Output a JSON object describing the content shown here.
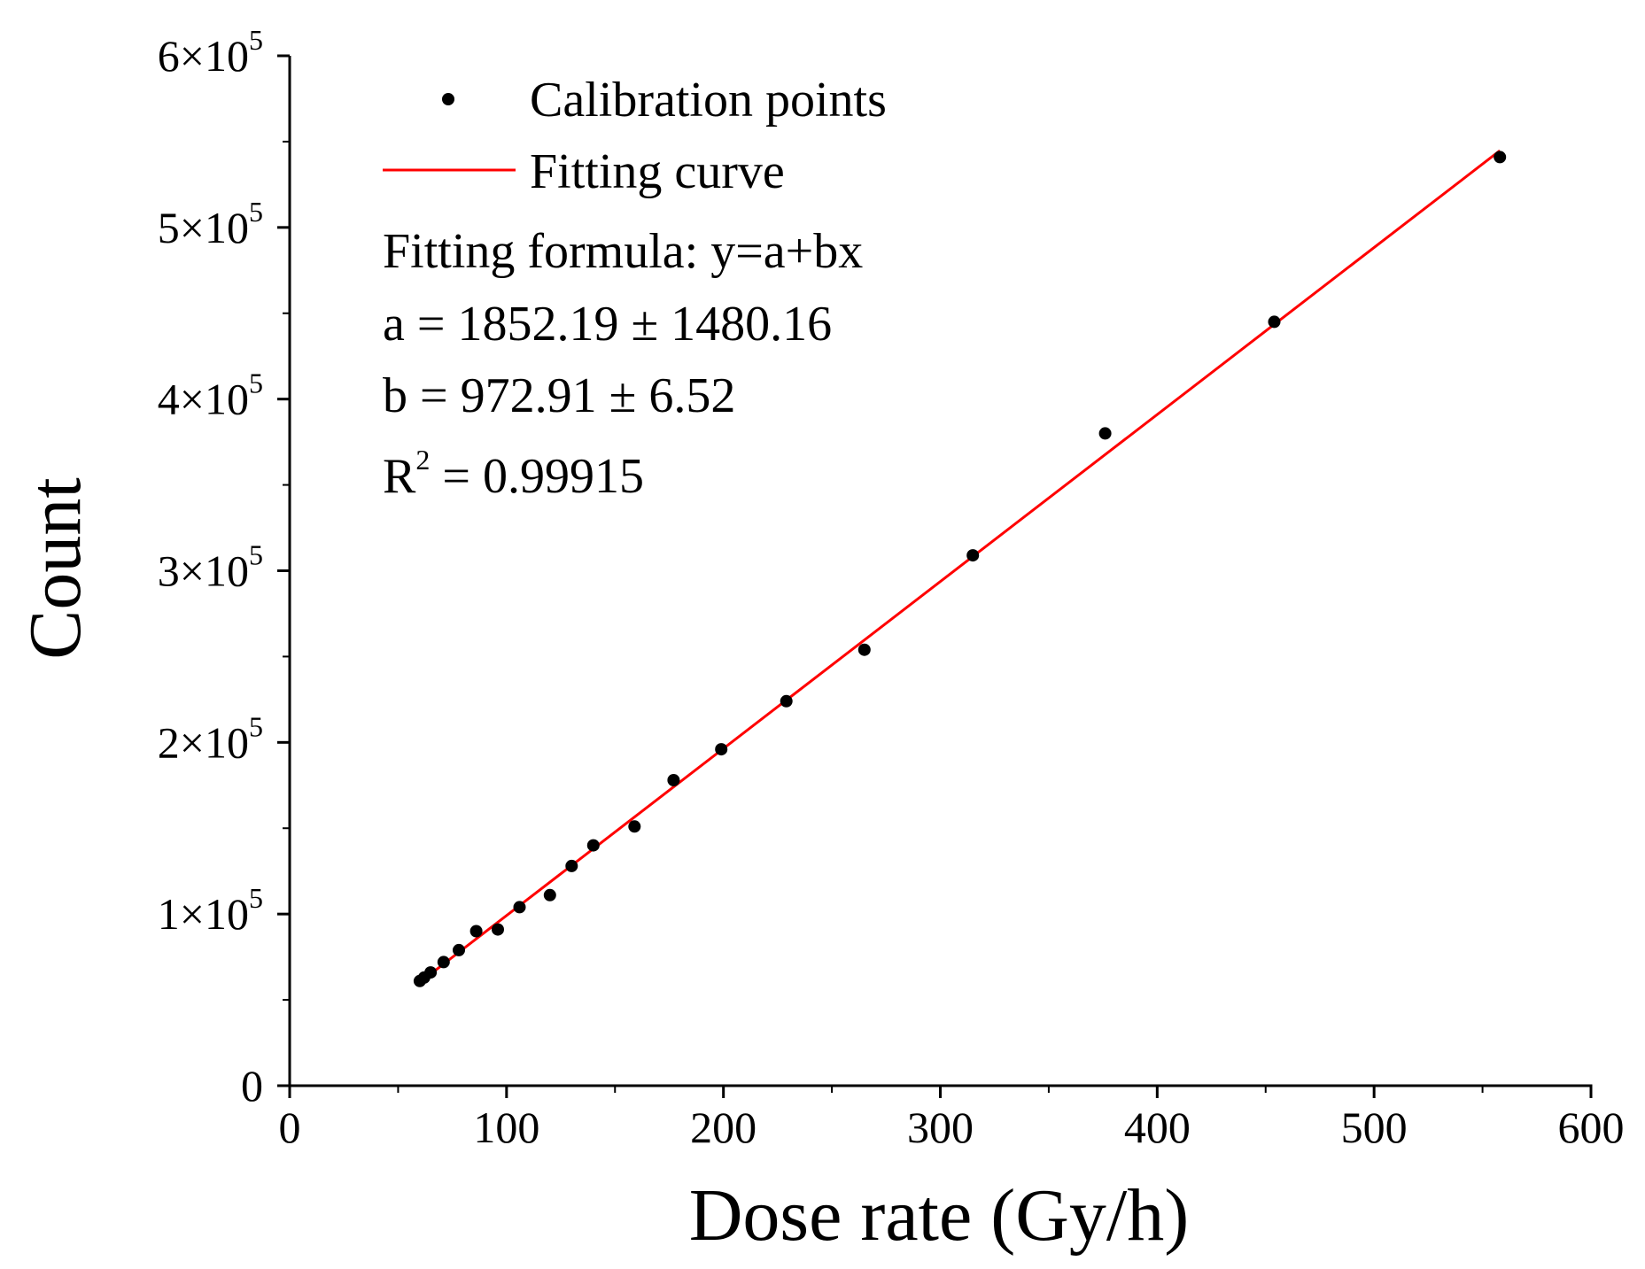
{
  "chart_data": {
    "type": "scatter",
    "xlabel": "Dose rate (Gy/h)",
    "ylabel": "Count",
    "xlim": [
      0,
      600
    ],
    "ylim": [
      0,
      600000
    ],
    "x_ticks": [
      0,
      100,
      200,
      300,
      400,
      500,
      600
    ],
    "x_tick_labels": [
      "0",
      "100",
      "200",
      "300",
      "400",
      "500",
      "600"
    ],
    "y_ticks": [
      0,
      100000,
      200000,
      300000,
      400000,
      500000,
      600000
    ],
    "y_tick_labels": [
      {
        "mantissa": "0",
        "times": "",
        "base": "",
        "exp": ""
      },
      {
        "mantissa": "1",
        "times": "×",
        "base": "10",
        "exp": "5"
      },
      {
        "mantissa": "2",
        "times": "×",
        "base": "10",
        "exp": "5"
      },
      {
        "mantissa": "3",
        "times": "×",
        "base": "10",
        "exp": "5"
      },
      {
        "mantissa": "4",
        "times": "×",
        "base": "10",
        "exp": "5"
      },
      {
        "mantissa": "5",
        "times": "×",
        "base": "10",
        "exp": "5"
      },
      {
        "mantissa": "6",
        "times": "×",
        "base": "10",
        "exp": "5"
      }
    ],
    "grid": false,
    "legend_position": "top-left",
    "series": [
      {
        "name": "Calibration points",
        "kind": "scatter",
        "color": "#000000",
        "x": [
          60,
          62,
          65,
          71,
          78,
          86,
          96,
          106,
          120,
          130,
          140,
          159,
          177,
          199,
          229,
          265,
          315,
          376,
          454,
          558
        ],
        "y": [
          61000,
          63000,
          66000,
          72000,
          79000,
          90000,
          91000,
          104000,
          111000,
          128000,
          140000,
          151000,
          178000,
          196000,
          224000,
          254000,
          309000,
          380000,
          445000,
          541000
        ]
      },
      {
        "name": "Fitting curve",
        "kind": "line",
        "color": "#ff0000",
        "x": [
          60,
          558
        ],
        "y": [
          60227,
          544735
        ]
      }
    ],
    "annotations": {
      "formula": "Fitting formula: y=a+bx",
      "a": "a = 1852.19 ± 1480.16",
      "b": "b = 972.91 ± 6.52",
      "r2_prefix": "R",
      "r2_exp": "2",
      "r2_value": " = 0.99915"
    }
  }
}
